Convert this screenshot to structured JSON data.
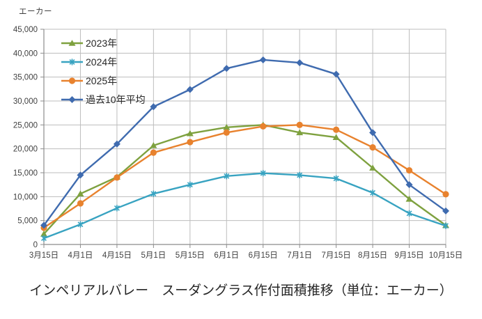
{
  "chart_data": {
    "type": "line",
    "title": "インペリアルバレー　スーダングラス作付面積推移（単位：エーカー）",
    "ylabel": "エーカー",
    "xlabel": "",
    "categories": [
      "3月15日",
      "4月1日",
      "4月15日",
      "5月1日",
      "5月15日",
      "6月1日",
      "6月15日",
      "7月1日",
      "7月15日",
      "8月15日",
      "9月15日",
      "10月15日"
    ],
    "series": [
      {
        "name": "2023年",
        "color": "#7ea13f",
        "marker": "triangle",
        "values": [
          2200,
          10600,
          14100,
          20700,
          23200,
          24500,
          25000,
          23400,
          22400,
          16000,
          9500,
          4000
        ]
      },
      {
        "name": "2024年",
        "color": "#38a3c1",
        "marker": "asterisk",
        "values": [
          1300,
          4200,
          7600,
          10600,
          12500,
          14300,
          14900,
          14500,
          13800,
          10800,
          6500,
          3900
        ]
      },
      {
        "name": "2025年",
        "color": "#e8822e",
        "marker": "circle",
        "values": [
          3500,
          8600,
          14000,
          19200,
          21400,
          23400,
          24700,
          25000,
          24000,
          20300,
          15500,
          10500
        ]
      },
      {
        "name": "過去10年平均",
        "color": "#3f6baf",
        "marker": "diamond",
        "values": [
          4000,
          14500,
          21000,
          28800,
          32400,
          36800,
          38600,
          38000,
          35600,
          23400,
          12500,
          7000
        ]
      }
    ],
    "ylim": [
      0,
      45000
    ],
    "ytick_step": 5000,
    "ytick_labels": [
      "0",
      "5,000",
      "10,000",
      "15,000",
      "20,000",
      "25,000",
      "30,000",
      "35,000",
      "40,000",
      "45,000"
    ],
    "grid": true,
    "legend_position": "top-left-inside",
    "colors": {
      "gridline": "#bdbdbd",
      "axis": "#8c8c8c",
      "tick_text": "#3f3f3f",
      "title_text": "#262626"
    }
  }
}
